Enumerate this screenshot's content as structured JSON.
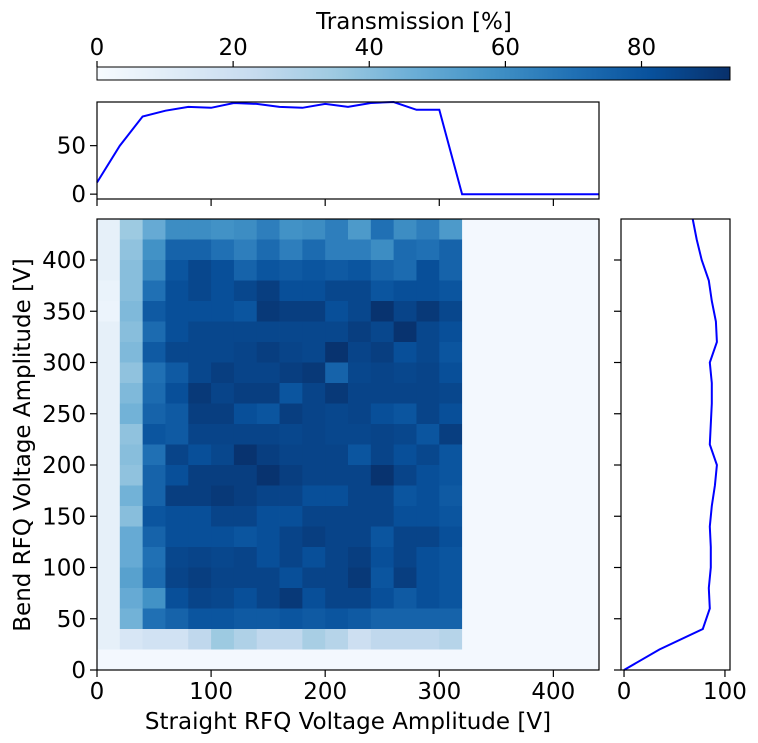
{
  "chart_data": [
    {
      "type": "heatmap",
      "title": "",
      "xlabel": "Straight RFQ Voltage Amplitude [V]",
      "ylabel": "Bend RFQ Voltage Amplitude [V]",
      "xlim": [
        0,
        440
      ],
      "ylim": [
        0,
        440
      ],
      "x_ticks": [
        "0",
        "100",
        "200",
        "300",
        "400"
      ],
      "y_ticks": [
        "0",
        "50",
        "100",
        "150",
        "200",
        "250",
        "300",
        "350",
        "400"
      ],
      "bin_size": 20,
      "nx": 22,
      "ny": 22,
      "colormap": "Blues",
      "colorbar": {
        "label": "Transmission [%]",
        "range": [
          0,
          93
        ],
        "ticks": [
          "0",
          "20",
          "40",
          "60",
          "80"
        ],
        "position": "top"
      },
      "values_rows_top_to_bottom": [
        [
          8,
          35,
          48,
          60,
          60,
          58,
          60,
          65,
          58,
          60,
          65,
          55,
          70,
          60,
          65,
          55,
          2,
          2,
          2,
          2,
          2,
          2
        ],
        [
          8,
          38,
          58,
          75,
          75,
          70,
          65,
          72,
          65,
          72,
          65,
          65,
          60,
          72,
          70,
          75,
          2,
          2,
          2,
          2,
          2,
          2
        ],
        [
          8,
          40,
          62,
          80,
          85,
          82,
          75,
          80,
          78,
          80,
          78,
          80,
          75,
          72,
          82,
          75,
          2,
          2,
          2,
          2,
          2,
          2
        ],
        [
          6,
          40,
          70,
          82,
          85,
          82,
          85,
          88,
          82,
          82,
          85,
          85,
          80,
          82,
          82,
          80,
          2,
          2,
          2,
          2,
          2,
          2
        ],
        [
          5,
          42,
          78,
          82,
          82,
          82,
          80,
          90,
          88,
          88,
          82,
          85,
          92,
          86,
          90,
          85,
          2,
          2,
          2,
          2,
          2,
          2
        ],
        [
          8,
          40,
          72,
          82,
          85,
          85,
          85,
          85,
          85,
          85,
          85,
          88,
          85,
          92,
          85,
          82,
          2,
          2,
          2,
          2,
          2,
          2
        ],
        [
          8,
          42,
          78,
          85,
          85,
          85,
          86,
          88,
          86,
          85,
          92,
          86,
          88,
          82,
          85,
          80,
          2,
          2,
          2,
          2,
          2,
          2
        ],
        [
          8,
          38,
          70,
          78,
          85,
          88,
          86,
          86,
          88,
          90,
          75,
          85,
          86,
          85,
          86,
          82,
          2,
          2,
          2,
          2,
          2,
          2
        ],
        [
          8,
          42,
          72,
          82,
          90,
          86,
          88,
          88,
          80,
          86,
          90,
          86,
          86,
          86,
          86,
          85,
          2,
          2,
          2,
          2,
          2,
          2
        ],
        [
          8,
          45,
          75,
          78,
          88,
          88,
          82,
          80,
          88,
          86,
          85,
          86,
          82,
          80,
          86,
          82,
          2,
          2,
          2,
          2,
          2,
          2
        ],
        [
          8,
          38,
          80,
          78,
          86,
          86,
          86,
          86,
          85,
          86,
          85,
          85,
          86,
          85,
          80,
          88,
          2,
          2,
          2,
          2,
          2,
          2
        ],
        [
          8,
          40,
          70,
          86,
          82,
          85,
          92,
          88,
          86,
          86,
          86,
          80,
          86,
          82,
          85,
          80,
          2,
          2,
          2,
          2,
          2,
          2
        ],
        [
          8,
          38,
          75,
          82,
          88,
          88,
          88,
          92,
          88,
          86,
          86,
          86,
          92,
          86,
          82,
          80,
          2,
          2,
          2,
          2,
          2,
          2
        ],
        [
          8,
          45,
          75,
          88,
          88,
          90,
          88,
          86,
          86,
          82,
          82,
          86,
          86,
          80,
          82,
          78,
          2,
          2,
          2,
          2,
          2,
          2
        ],
        [
          8,
          40,
          80,
          82,
          82,
          86,
          86,
          82,
          82,
          86,
          86,
          86,
          86,
          82,
          82,
          80,
          2,
          2,
          2,
          2,
          2,
          2
        ],
        [
          8,
          48,
          75,
          82,
          82,
          82,
          80,
          82,
          86,
          88,
          86,
          86,
          80,
          86,
          86,
          82,
          2,
          2,
          2,
          2,
          2,
          2
        ],
        [
          8,
          48,
          70,
          85,
          86,
          85,
          86,
          82,
          86,
          82,
          86,
          88,
          82,
          86,
          82,
          80,
          2,
          2,
          2,
          2,
          2,
          2
        ],
        [
          8,
          52,
          72,
          86,
          88,
          86,
          86,
          86,
          82,
          86,
          86,
          90,
          80,
          88,
          82,
          80,
          2,
          2,
          2,
          2,
          2,
          2
        ],
        [
          8,
          48,
          58,
          82,
          86,
          85,
          82,
          86,
          90,
          82,
          86,
          86,
          82,
          78,
          82,
          80,
          2,
          2,
          2,
          2,
          2,
          2
        ],
        [
          8,
          45,
          70,
          75,
          80,
          80,
          78,
          78,
          80,
          78,
          80,
          78,
          75,
          75,
          75,
          75,
          2,
          2,
          2,
          2,
          2,
          2
        ],
        [
          8,
          15,
          18,
          18,
          25,
          35,
          30,
          25,
          25,
          32,
          28,
          20,
          25,
          25,
          25,
          28,
          2,
          2,
          2,
          2,
          2,
          2
        ],
        [
          2,
          2,
          2,
          2,
          2,
          2,
          2,
          2,
          2,
          2,
          2,
          2,
          2,
          2,
          2,
          2,
          2,
          2,
          2,
          2,
          2,
          2
        ]
      ]
    },
    {
      "type": "line",
      "title": "",
      "xlabel": "",
      "ylabel": "",
      "xlim": [
        0,
        440
      ],
      "ylim": [
        -5,
        95
      ],
      "y_ticks": [
        "0",
        "50"
      ],
      "x": [
        0,
        20,
        40,
        60,
        80,
        100,
        120,
        140,
        160,
        180,
        200,
        220,
        240,
        260,
        280,
        300,
        320,
        340,
        360,
        380,
        400,
        420,
        440
      ],
      "series": [
        {
          "color": "#0000ff",
          "values": [
            12,
            50,
            80,
            86,
            90,
            89,
            94,
            93,
            90,
            89,
            93,
            90,
            94,
            95,
            87,
            87,
            0,
            0,
            0,
            0,
            0,
            0,
            0
          ]
        }
      ]
    },
    {
      "type": "line",
      "title": "",
      "xlabel": "",
      "ylabel": "",
      "xlim": [
        -3,
        105
      ],
      "ylim": [
        0,
        440
      ],
      "x_ticks": [
        "0",
        "100"
      ],
      "y": [
        0,
        20,
        40,
        60,
        80,
        100,
        120,
        140,
        160,
        180,
        200,
        220,
        240,
        260,
        280,
        300,
        320,
        340,
        360,
        380,
        400,
        420,
        440
      ],
      "series": [
        {
          "color": "#0000ff",
          "values": [
            0,
            35,
            78,
            85,
            84,
            86,
            86,
            85,
            87,
            90,
            92,
            85,
            86,
            87,
            87,
            85,
            92,
            91,
            87,
            84,
            77,
            72,
            68
          ]
        }
      ]
    }
  ]
}
